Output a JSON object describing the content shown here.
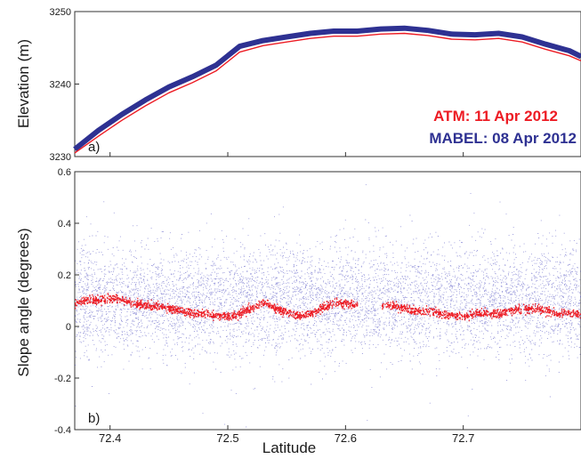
{
  "chart_data": [
    {
      "panel": "a)",
      "type": "line",
      "ylabel": "Elevation (m)",
      "ylim": [
        3230,
        3250
      ],
      "xlim": [
        72.37,
        72.8
      ],
      "yticks": [
        "3230",
        "3240",
        "3250"
      ],
      "legend_placement": "inside-right",
      "series": [
        {
          "name": "MABEL: 08 Apr 2012",
          "color": "#2e3192",
          "x": [
            72.37,
            72.39,
            72.41,
            72.43,
            72.45,
            72.47,
            72.49,
            72.51,
            72.53,
            72.55,
            72.57,
            72.59,
            72.61,
            72.63,
            72.65,
            72.67,
            72.69,
            72.71,
            72.73,
            72.75,
            72.77,
            72.79,
            72.8
          ],
          "y": [
            3231.0,
            3233.6,
            3235.8,
            3237.8,
            3239.6,
            3241.0,
            3242.6,
            3245.2,
            3246.0,
            3246.5,
            3247.0,
            3247.3,
            3247.3,
            3247.6,
            3247.7,
            3247.4,
            3246.9,
            3246.8,
            3247.0,
            3246.5,
            3245.5,
            3244.6,
            3243.8
          ]
        },
        {
          "name": "ATM: 11 Apr 2012",
          "color": "#ed1c24",
          "x": [
            72.37,
            72.39,
            72.41,
            72.43,
            72.45,
            72.47,
            72.49,
            72.51,
            72.53,
            72.55,
            72.57,
            72.59,
            72.61,
            72.63,
            72.65,
            72.67,
            72.69,
            72.71,
            72.73,
            72.75,
            72.77,
            72.79,
            72.8
          ],
          "y": [
            3230.5,
            3232.8,
            3235.0,
            3237.0,
            3238.8,
            3240.2,
            3241.8,
            3244.4,
            3245.3,
            3245.8,
            3246.3,
            3246.6,
            3246.6,
            3246.9,
            3247.0,
            3246.7,
            3246.2,
            3246.1,
            3246.3,
            3245.8,
            3244.8,
            3243.9,
            3243.2
          ]
        }
      ]
    },
    {
      "panel": "b)",
      "type": "scatter",
      "xlabel": "Latitude",
      "ylabel": "Slope angle (degrees)",
      "ylim": [
        -0.4,
        0.6
      ],
      "xlim": [
        72.37,
        72.8
      ],
      "yticks": [
        "-0.4",
        "-0.2",
        "0",
        "0.2",
        "0.4",
        "0.6"
      ],
      "xticks": [
        "72.4",
        "72.5",
        "72.6",
        "72.7"
      ],
      "series": [
        {
          "name": "MABEL",
          "color": "#4b4bbf",
          "point_count_approx": 40000,
          "mean": 0.1,
          "spread_1sd": 0.1
        },
        {
          "name": "ATM",
          "color": "#ed1c24",
          "x": [
            72.37,
            72.38,
            72.39,
            72.4,
            72.41,
            72.42,
            72.43,
            72.44,
            72.45,
            72.46,
            72.47,
            72.48,
            72.49,
            72.5,
            72.51,
            72.52,
            72.53,
            72.54,
            72.55,
            72.56,
            72.57,
            72.58,
            72.59,
            72.6,
            72.61,
            72.62,
            72.63,
            72.64,
            72.65,
            72.66,
            72.67,
            72.68,
            72.69,
            72.7,
            72.71,
            72.72,
            72.73,
            72.74,
            72.75,
            72.76,
            72.77,
            72.78,
            72.79,
            72.8
          ],
          "y": [
            0.09,
            0.1,
            0.1,
            0.11,
            0.1,
            0.09,
            0.08,
            0.08,
            0.07,
            0.06,
            0.05,
            0.05,
            0.04,
            0.04,
            0.05,
            0.07,
            0.09,
            0.07,
            0.05,
            0.04,
            0.05,
            0.07,
            0.09,
            0.09,
            0.08,
            null,
            0.08,
            0.08,
            0.07,
            0.06,
            0.06,
            0.05,
            0.04,
            0.04,
            0.05,
            0.05,
            0.05,
            0.06,
            0.07,
            0.07,
            0.06,
            0.05,
            0.05,
            0.05
          ]
        }
      ]
    }
  ],
  "legend": {
    "atm": "ATM:  11 Apr 2012",
    "mabel": "MABEL:  08 Apr 2012"
  }
}
